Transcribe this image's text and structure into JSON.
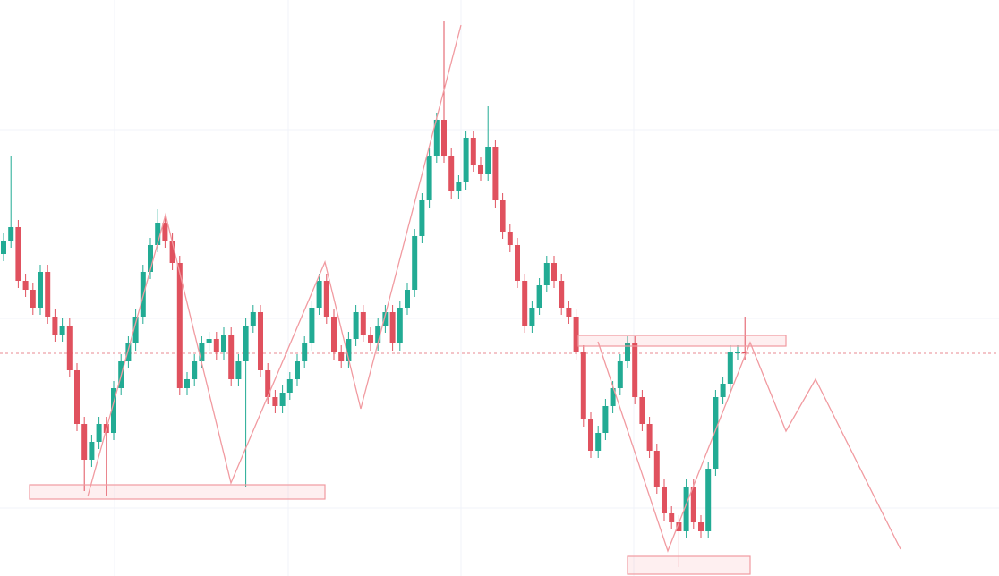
{
  "chart_data": {
    "type": "candlestick",
    "ylim": [
      0,
      644
    ],
    "up_color": "#22ab94",
    "down_color": "#e0515e",
    "open": [
      360,
      375,
      390,
      330,
      320,
      300,
      340,
      290,
      270,
      280,
      230,
      170,
      130,
      150,
      170,
      160,
      210,
      240,
      260,
      290,
      340,
      370,
      395,
      375,
      350,
      210,
      220,
      240,
      260,
      265,
      250,
      270,
      220,
      240,
      280,
      295,
      230,
      200,
      190,
      205,
      220,
      240,
      260,
      300,
      330,
      290,
      250,
      240,
      265,
      295,
      270,
      260,
      280,
      295,
      260,
      300,
      320,
      380,
      420,
      470,
      510,
      470,
      430,
      440,
      490,
      460,
      450,
      480,
      420,
      385,
      370,
      330,
      280,
      300,
      325,
      350,
      330,
      300,
      290,
      250,
      175,
      140,
      160,
      190,
      210,
      240,
      260,
      200,
      170,
      140,
      100,
      70,
      60,
      50,
      100,
      60,
      50,
      120,
      200,
      215,
      250,
      250
    ],
    "high": [
      383,
      470,
      398,
      338,
      328,
      348,
      348,
      298,
      288,
      288,
      238,
      178,
      158,
      178,
      178,
      218,
      248,
      268,
      298,
      348,
      378,
      410,
      403,
      383,
      358,
      228,
      248,
      268,
      273,
      273,
      278,
      278,
      248,
      288,
      303,
      303,
      238,
      208,
      213,
      228,
      248,
      268,
      308,
      338,
      338,
      298,
      258,
      273,
      303,
      303,
      278,
      288,
      303,
      303,
      308,
      328,
      388,
      428,
      478,
      518,
      620,
      478,
      448,
      498,
      498,
      468,
      525,
      488,
      428,
      393,
      378,
      338,
      308,
      333,
      358,
      358,
      338,
      308,
      298,
      258,
      183,
      168,
      198,
      218,
      248,
      268,
      268,
      208,
      178,
      148,
      108,
      78,
      68,
      108,
      108,
      68,
      128,
      208,
      223,
      258,
      258,
      290
    ],
    "low": [
      352,
      367,
      322,
      312,
      292,
      292,
      282,
      262,
      262,
      222,
      162,
      95,
      122,
      142,
      90,
      152,
      202,
      232,
      252,
      282,
      332,
      362,
      367,
      342,
      202,
      202,
      212,
      232,
      252,
      242,
      242,
      212,
      212,
      100,
      272,
      222,
      192,
      182,
      182,
      197,
      212,
      232,
      252,
      292,
      282,
      242,
      232,
      232,
      257,
      262,
      252,
      252,
      272,
      252,
      252,
      292,
      312,
      372,
      412,
      462,
      462,
      422,
      422,
      432,
      452,
      442,
      442,
      412,
      377,
      362,
      322,
      272,
      272,
      292,
      317,
      322,
      292,
      282,
      242,
      167,
      132,
      132,
      152,
      182,
      202,
      232,
      192,
      162,
      132,
      92,
      62,
      52,
      10,
      42,
      52,
      42,
      42,
      112,
      192,
      207,
      242,
      241
    ],
    "close": [
      375,
      390,
      330,
      320,
      300,
      340,
      290,
      270,
      280,
      230,
      170,
      130,
      150,
      170,
      160,
      210,
      240,
      260,
      290,
      340,
      370,
      395,
      375,
      350,
      210,
      220,
      240,
      260,
      265,
      250,
      270,
      220,
      240,
      280,
      295,
      230,
      200,
      190,
      205,
      220,
      240,
      260,
      300,
      330,
      290,
      250,
      240,
      265,
      295,
      270,
      260,
      280,
      295,
      260,
      300,
      320,
      380,
      420,
      470,
      510,
      470,
      430,
      440,
      490,
      460,
      450,
      480,
      420,
      385,
      370,
      330,
      280,
      300,
      325,
      350,
      330,
      300,
      290,
      250,
      175,
      140,
      160,
      190,
      210,
      240,
      260,
      200,
      170,
      140,
      100,
      70,
      60,
      50,
      100,
      60,
      50,
      120,
      200,
      215,
      250,
      250,
      249
    ]
  }
}
